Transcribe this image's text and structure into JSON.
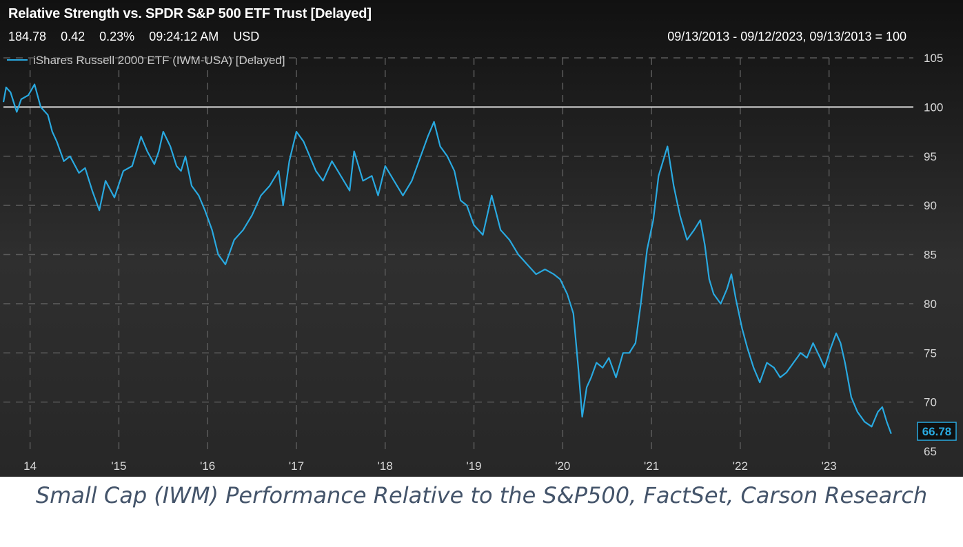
{
  "header": {
    "title": "Relative Strength vs. SPDR S&P 500 ETF Trust [Delayed]",
    "last": "184.78",
    "change": "0.42",
    "change_pct": "0.23%",
    "time": "09:24:12 AM",
    "currency": "USD",
    "range_text": "09/13/2013 - 09/12/2023, 09/13/2013 = 100"
  },
  "caption": "Small Cap (IWM) Performance Relative to the S&P500, FactSet, Carson Research",
  "chart_data": {
    "type": "line",
    "title": "Relative Strength vs. SPDR S&P 500 ETF Trust [Delayed]",
    "legend_position": "top-left",
    "grid": true,
    "ylim": [
      65,
      105
    ],
    "xlim": [
      2013.7,
      2023.95
    ],
    "yticks": [
      65,
      70,
      75,
      80,
      85,
      90,
      95,
      100,
      105
    ],
    "xticks": [
      {
        "x": 2014,
        "label": "14"
      },
      {
        "x": 2015,
        "label": "'15"
      },
      {
        "x": 2016,
        "label": "'16"
      },
      {
        "x": 2017,
        "label": "'17"
      },
      {
        "x": 2018,
        "label": "'18"
      },
      {
        "x": 2019,
        "label": "'19"
      },
      {
        "x": 2020,
        "label": "'20"
      },
      {
        "x": 2021,
        "label": "'21"
      },
      {
        "x": 2022,
        "label": "'22"
      },
      {
        "x": 2023,
        "label": "'23"
      }
    ],
    "reference_line": 100,
    "last_value_label": "66.78",
    "colors": {
      "series": "#29a9e0",
      "reference": "#dcdcdc",
      "grid": "#5a5a5a",
      "text": "#d9d9d9"
    },
    "series": [
      {
        "name": "iShares Russell 2000 ETF (IWM-USA) [Delayed]",
        "x": [
          2013.7,
          2013.73,
          2013.78,
          2013.85,
          2013.9,
          2013.98,
          2014.05,
          2014.12,
          2014.2,
          2014.25,
          2014.3,
          2014.38,
          2014.45,
          2014.55,
          2014.62,
          2014.7,
          2014.78,
          2014.85,
          2014.95,
          2015.05,
          2015.15,
          2015.25,
          2015.32,
          2015.4,
          2015.45,
          2015.5,
          2015.58,
          2015.65,
          2015.7,
          2015.75,
          2015.82,
          2015.9,
          2015.97,
          2016.05,
          2016.12,
          2016.2,
          2016.3,
          2016.4,
          2016.5,
          2016.6,
          2016.7,
          2016.8,
          2016.85,
          2016.92,
          2017.0,
          2017.08,
          2017.15,
          2017.22,
          2017.3,
          2017.4,
          2017.5,
          2017.6,
          2017.65,
          2017.75,
          2017.85,
          2017.92,
          2018.0,
          2018.1,
          2018.2,
          2018.3,
          2018.4,
          2018.48,
          2018.55,
          2018.62,
          2018.7,
          2018.78,
          2018.85,
          2018.92,
          2019.0,
          2019.1,
          2019.2,
          2019.3,
          2019.4,
          2019.5,
          2019.6,
          2019.7,
          2019.8,
          2019.9,
          2019.97,
          2020.05,
          2020.12,
          2020.18,
          2020.22,
          2020.27,
          2020.32,
          2020.38,
          2020.45,
          2020.52,
          2020.6,
          2020.68,
          2020.75,
          2020.82,
          2020.88,
          2020.95,
          2021.02,
          2021.08,
          2021.13,
          2021.18,
          2021.25,
          2021.32,
          2021.4,
          2021.48,
          2021.55,
          2021.6,
          2021.65,
          2021.7,
          2021.78,
          2021.85,
          2021.9,
          2021.95,
          2022.02,
          2022.08,
          2022.15,
          2022.22,
          2022.3,
          2022.38,
          2022.45,
          2022.52,
          2022.6,
          2022.68,
          2022.75,
          2022.82,
          2022.9,
          2022.95,
          2023.02,
          2023.08,
          2023.13,
          2023.18,
          2023.25,
          2023.32,
          2023.4,
          2023.48,
          2023.55,
          2023.6,
          2023.65,
          2023.7
        ],
        "values": [
          100.5,
          102,
          101.5,
          99.5,
          100.8,
          101.2,
          102.3,
          100.0,
          99.2,
          97.5,
          96.5,
          94.5,
          95.0,
          93.3,
          93.8,
          91.5,
          89.5,
          92.5,
          90.8,
          93.5,
          94.0,
          97.0,
          95.5,
          94.2,
          95.5,
          97.5,
          96.0,
          94.0,
          93.5,
          95.0,
          92.0,
          91.0,
          89.5,
          87.5,
          85.0,
          84.0,
          86.5,
          87.5,
          89.0,
          91.0,
          92.0,
          93.5,
          90.0,
          94.5,
          97.5,
          96.5,
          95.0,
          93.5,
          92.5,
          94.5,
          93.0,
          91.5,
          95.5,
          92.5,
          93.0,
          91.0,
          94.0,
          92.5,
          91.0,
          92.5,
          95.0,
          97.0,
          98.5,
          96.0,
          95.0,
          93.5,
          90.5,
          90.0,
          88.0,
          87.0,
          91.0,
          87.5,
          86.5,
          85.0,
          84.0,
          83.0,
          83.5,
          83.0,
          82.5,
          81.0,
          79.0,
          73.0,
          68.5,
          71.5,
          72.5,
          74.0,
          73.5,
          74.5,
          72.5,
          75.0,
          75.0,
          76.0,
          80.0,
          85.5,
          88.5,
          93.0,
          94.5,
          96.0,
          92.0,
          89.0,
          86.5,
          87.5,
          88.5,
          86.0,
          82.5,
          81.0,
          80.0,
          81.5,
          83.0,
          80.5,
          77.5,
          75.5,
          73.5,
          72.0,
          74.0,
          73.5,
          72.5,
          73.0,
          74.0,
          75.0,
          74.5,
          76.0,
          74.5,
          73.5,
          75.5,
          77.0,
          76.0,
          74.0,
          70.5,
          69.0,
          68.0,
          67.5,
          69.0,
          69.5,
          68.0,
          66.78
        ]
      }
    ]
  }
}
